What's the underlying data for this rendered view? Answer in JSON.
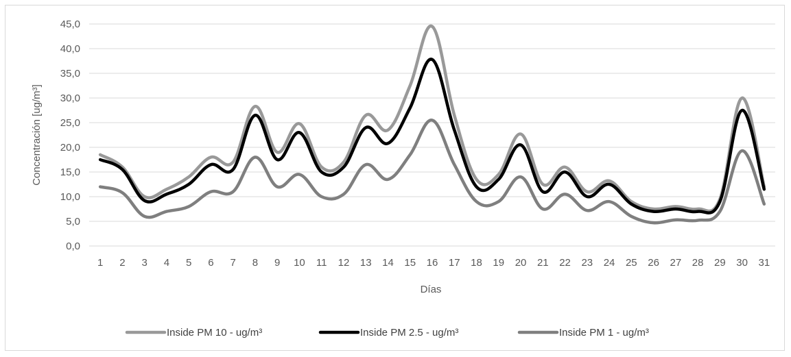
{
  "chart_data": {
    "type": "line",
    "title": "",
    "xlabel": "Días",
    "ylabel": "Concentración [ug/m³]",
    "ylim": [
      0,
      45
    ],
    "ytick_labels": [
      "0,0",
      "5,0",
      "10,0",
      "15,0",
      "20,0",
      "25,0",
      "30,0",
      "35,0",
      "40,0",
      "45,0"
    ],
    "categories": [
      "1",
      "2",
      "3",
      "4",
      "5",
      "6",
      "7",
      "8",
      "9",
      "10",
      "11",
      "12",
      "13",
      "14",
      "15",
      "16",
      "17",
      "18",
      "19",
      "20",
      "21",
      "22",
      "23",
      "24",
      "25",
      "26",
      "27",
      "28",
      "29",
      "30",
      "31"
    ],
    "grid": true,
    "legend_position": "bottom",
    "series": [
      {
        "name": "Inside PM 10 - ug/m³",
        "color": "#999999",
        "values": [
          18.5,
          16.0,
          10.0,
          11.5,
          14.0,
          18.0,
          17.0,
          28.3,
          19.0,
          24.8,
          16.0,
          17.0,
          26.5,
          23.5,
          32.5,
          44.5,
          26.5,
          13.5,
          14.5,
          22.7,
          12.5,
          16.0,
          11.0,
          13.2,
          9.0,
          7.5,
          8.0,
          7.5,
          9.5,
          30.0,
          12.0
        ]
      },
      {
        "name": "Inside PM 2.5 - ug/m³",
        "color": "#000000",
        "values": [
          17.5,
          15.5,
          9.2,
          10.5,
          12.5,
          16.5,
          15.5,
          26.5,
          17.5,
          23.0,
          15.0,
          16.0,
          24.0,
          20.8,
          28.0,
          37.8,
          23.5,
          12.0,
          13.5,
          20.5,
          11.0,
          15.0,
          10.0,
          12.5,
          8.5,
          7.0,
          7.5,
          7.0,
          9.0,
          27.5,
          11.5
        ]
      },
      {
        "name": "Inside PM 1 - ug/m³",
        "color": "#7f7f7f",
        "values": [
          12.0,
          10.8,
          6.0,
          7.0,
          8.0,
          11.0,
          11.0,
          18.0,
          12.0,
          14.5,
          10.0,
          10.5,
          16.5,
          13.5,
          18.5,
          25.5,
          16.5,
          9.0,
          9.0,
          14.0,
          7.5,
          10.5,
          7.2,
          9.0,
          6.0,
          4.7,
          5.3,
          5.2,
          7.0,
          19.3,
          8.5
        ]
      }
    ]
  }
}
